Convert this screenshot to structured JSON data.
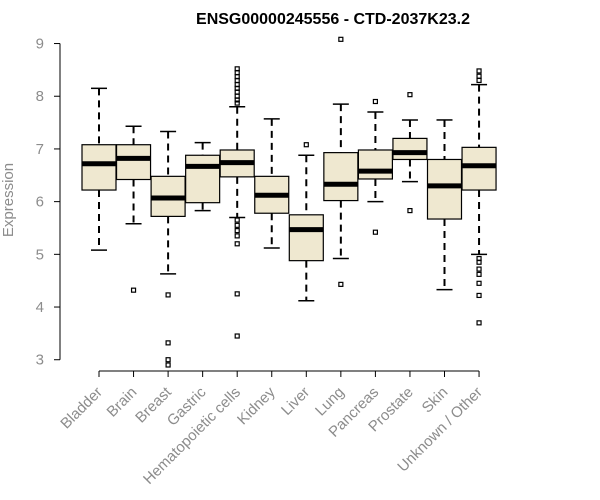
{
  "chart_data": {
    "type": "boxplot",
    "title": "ENSG00000245556 - CTD-2037K23.2",
    "xlabel": "",
    "ylabel": "Expression",
    "ylim": [
      2.9,
      9.2
    ],
    "yticks": [
      3,
      4,
      5,
      6,
      7,
      8,
      9
    ],
    "box_fill": "#efe8d0",
    "categories": [
      "Bladder",
      "Brain",
      "Breast",
      "Gastric",
      "Hematopoietic cells",
      "Kidney",
      "Liver",
      "Lung",
      "Pancreas",
      "Prostate",
      "Skin",
      "Unknown / Other"
    ],
    "boxes": [
      {
        "q1": 6.22,
        "median": 6.72,
        "q3": 7.08,
        "whisker_low": 5.08,
        "whisker_high": 8.15,
        "outliers": []
      },
      {
        "q1": 6.42,
        "median": 6.82,
        "q3": 7.08,
        "whisker_low": 5.58,
        "whisker_high": 7.43,
        "outliers": [
          4.32
        ]
      },
      {
        "q1": 5.72,
        "median": 6.07,
        "q3": 6.48,
        "whisker_low": 4.63,
        "whisker_high": 7.33,
        "outliers": [
          4.23,
          3.32,
          3.0,
          2.9
        ]
      },
      {
        "q1": 5.98,
        "median": 6.67,
        "q3": 6.88,
        "whisker_low": 5.83,
        "whisker_high": 7.12,
        "outliers": []
      },
      {
        "q1": 6.47,
        "median": 6.74,
        "q3": 6.98,
        "whisker_low": 5.7,
        "whisker_high": 7.8,
        "outliers": [
          8.52,
          8.45,
          8.37,
          8.3,
          8.22,
          8.15,
          8.08,
          8.0,
          7.93,
          7.87,
          5.65,
          5.55,
          5.45,
          5.35,
          5.2,
          4.25,
          3.45
        ]
      },
      {
        "q1": 5.78,
        "median": 6.12,
        "q3": 6.48,
        "whisker_low": 5.12,
        "whisker_high": 7.57,
        "outliers": []
      },
      {
        "q1": 4.88,
        "median": 5.47,
        "q3": 5.75,
        "whisker_low": 4.12,
        "whisker_high": 6.88,
        "outliers": [
          7.08
        ]
      },
      {
        "q1": 6.02,
        "median": 6.33,
        "q3": 6.93,
        "whisker_low": 4.92,
        "whisker_high": 7.85,
        "outliers": [
          9.08,
          4.43
        ]
      },
      {
        "q1": 6.43,
        "median": 6.58,
        "q3": 6.98,
        "whisker_low": 6.0,
        "whisker_high": 7.7,
        "outliers": [
          7.9,
          5.42
        ]
      },
      {
        "q1": 6.8,
        "median": 6.93,
        "q3": 7.2,
        "whisker_low": 6.38,
        "whisker_high": 7.55,
        "outliers": [
          8.03,
          5.83
        ]
      },
      {
        "q1": 5.67,
        "median": 6.3,
        "q3": 6.8,
        "whisker_low": 4.33,
        "whisker_high": 7.55,
        "outliers": []
      },
      {
        "q1": 6.22,
        "median": 6.68,
        "q3": 7.03,
        "whisker_low": 5.0,
        "whisker_high": 8.22,
        "outliers": [
          8.48,
          8.38,
          8.3,
          4.92,
          4.85,
          4.72,
          4.62,
          4.45,
          4.22,
          3.7
        ]
      }
    ]
  }
}
